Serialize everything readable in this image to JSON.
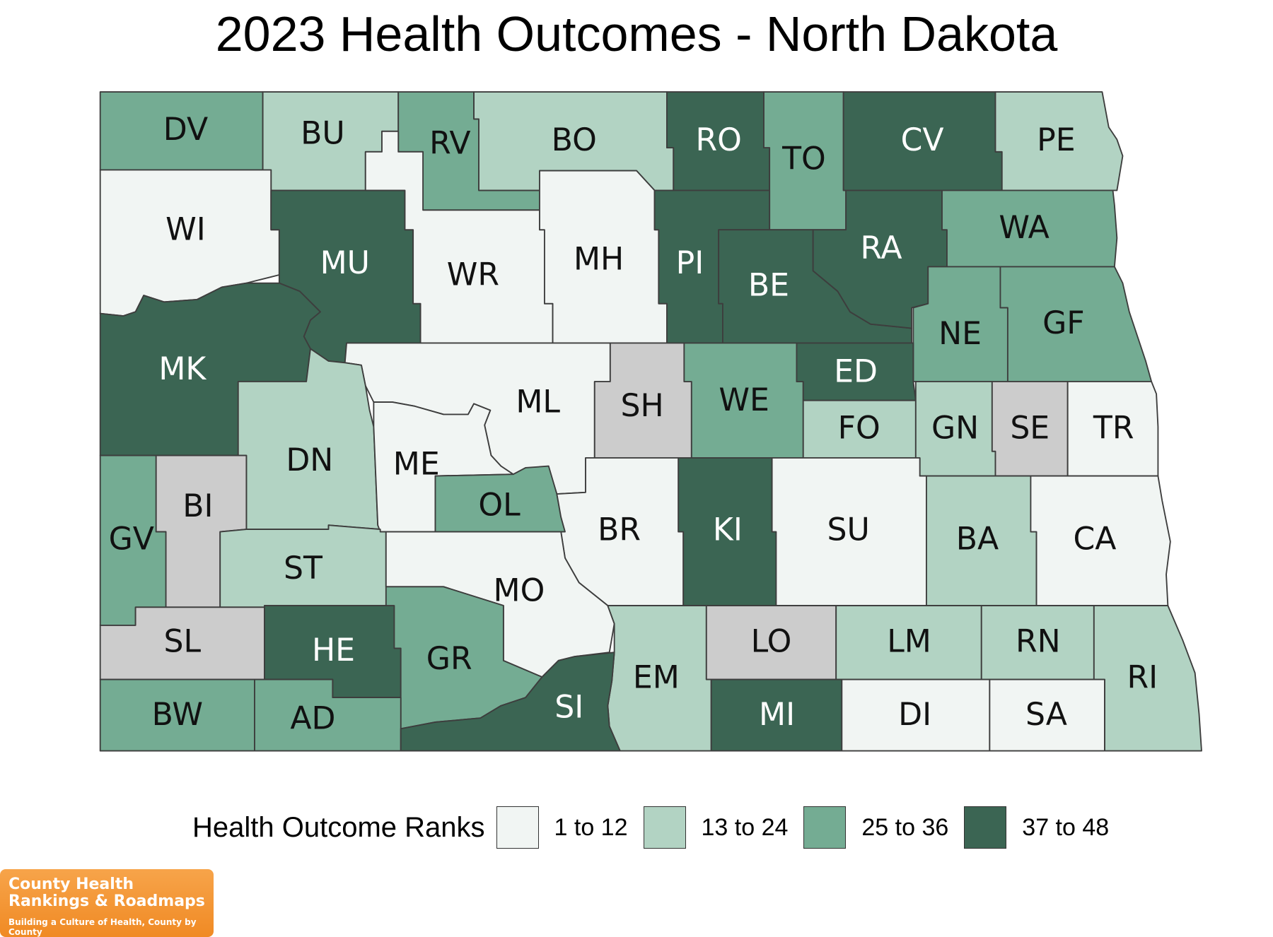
{
  "title": "2023 Health Outcomes - North Dakota",
  "legend": {
    "title": "Health Outcome Ranks",
    "items": [
      {
        "label": "1 to 12",
        "color": "#f1f5f3"
      },
      {
        "label": "13 to 24",
        "color": "#b2d3c3"
      },
      {
        "label": "25 to 36",
        "color": "#74ac93"
      },
      {
        "label": "37 to 48",
        "color": "#3b6553"
      }
    ]
  },
  "counties": [
    {
      "abbr": "DV",
      "group": 2
    },
    {
      "abbr": "BU",
      "group": 1
    },
    {
      "abbr": "RV",
      "group": 2
    },
    {
      "abbr": "BO",
      "group": 1
    },
    {
      "abbr": "RO",
      "group": 3
    },
    {
      "abbr": "TO",
      "group": 2
    },
    {
      "abbr": "CV",
      "group": 3
    },
    {
      "abbr": "PE",
      "group": 1
    },
    {
      "abbr": "WI",
      "group": 0
    },
    {
      "abbr": "MU",
      "group": 3
    },
    {
      "abbr": "WR",
      "group": 0
    },
    {
      "abbr": "MH",
      "group": 0
    },
    {
      "abbr": "PI",
      "group": 3
    },
    {
      "abbr": "BE",
      "group": 3
    },
    {
      "abbr": "RA",
      "group": 3
    },
    {
      "abbr": "WA",
      "group": 2
    },
    {
      "abbr": "MK",
      "group": 3
    },
    {
      "abbr": "NE",
      "group": 2
    },
    {
      "abbr": "GF",
      "group": 2
    },
    {
      "abbr": "ML",
      "group": 0
    },
    {
      "abbr": "SH",
      "group": null
    },
    {
      "abbr": "WE",
      "group": 2
    },
    {
      "abbr": "ED",
      "group": 3
    },
    {
      "abbr": "FO",
      "group": 1
    },
    {
      "abbr": "GN",
      "group": 1
    },
    {
      "abbr": "SE",
      "group": null
    },
    {
      "abbr": "TR",
      "group": 0
    },
    {
      "abbr": "DN",
      "group": 1
    },
    {
      "abbr": "ME",
      "group": 0
    },
    {
      "abbr": "BI",
      "group": null
    },
    {
      "abbr": "OL",
      "group": 2
    },
    {
      "abbr": "BR",
      "group": 0
    },
    {
      "abbr": "KI",
      "group": 3
    },
    {
      "abbr": "SU",
      "group": 0
    },
    {
      "abbr": "BA",
      "group": 1
    },
    {
      "abbr": "CA",
      "group": 0
    },
    {
      "abbr": "GV",
      "group": 2
    },
    {
      "abbr": "ST",
      "group": 1
    },
    {
      "abbr": "MO",
      "group": 0
    },
    {
      "abbr": "SL",
      "group": null
    },
    {
      "abbr": "HE",
      "group": 3
    },
    {
      "abbr": "GR",
      "group": 2
    },
    {
      "abbr": "LO",
      "group": null
    },
    {
      "abbr": "LM",
      "group": 1
    },
    {
      "abbr": "RN",
      "group": 1
    },
    {
      "abbr": "EM",
      "group": 1
    },
    {
      "abbr": "RI",
      "group": 1
    },
    {
      "abbr": "BW",
      "group": 2
    },
    {
      "abbr": "AD",
      "group": 2
    },
    {
      "abbr": "SI",
      "group": 3
    },
    {
      "abbr": "MI",
      "group": 3
    },
    {
      "abbr": "DI",
      "group": 0
    },
    {
      "abbr": "SA",
      "group": 0
    }
  ],
  "no_data_color": "#cccccc",
  "logo": {
    "line1": "County Health",
    "line2": "Rankings & Roadmaps",
    "tagline": "Building a Culture of Health, County by County"
  }
}
